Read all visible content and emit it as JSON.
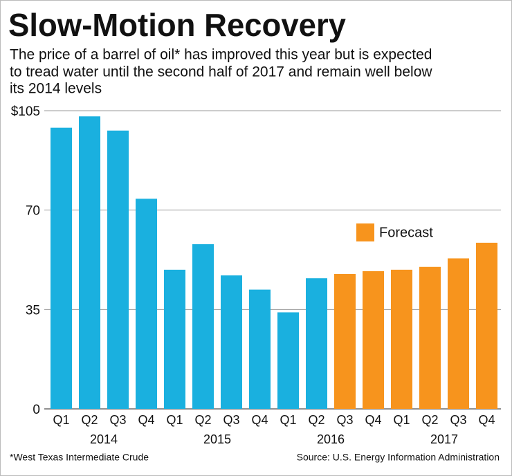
{
  "chart_data": {
    "type": "bar",
    "title": "Slow-Motion Recovery",
    "subtitle": [
      "The price of a barrel of oil* has improved this year but is expected",
      "to tread water until the second half of 2017 and remain well below",
      "its 2014 levels"
    ],
    "categories": [
      "Q1",
      "Q2",
      "Q3",
      "Q4",
      "Q1",
      "Q2",
      "Q3",
      "Q4",
      "Q1",
      "Q2",
      "Q3",
      "Q4",
      "Q1",
      "Q2",
      "Q3",
      "Q4"
    ],
    "years": [
      "2014",
      "2015",
      "2016",
      "2017"
    ],
    "series": [
      {
        "color": "#1ab0df",
        "values": [
          99,
          103,
          98,
          74,
          49,
          58,
          47,
          42,
          34,
          46,
          null,
          null,
          null,
          null,
          null,
          null
        ]
      },
      {
        "name": "Forecast",
        "color": "#f7941d",
        "values": [
          null,
          null,
          null,
          null,
          null,
          null,
          null,
          null,
          null,
          null,
          47.5,
          48.5,
          49,
          50,
          53,
          58.5
        ]
      }
    ],
    "ylim": [
      0,
      105
    ],
    "yticks": [
      0,
      35,
      70,
      {
        "value": 105,
        "label": "$105"
      }
    ],
    "grid": true,
    "note": "*West Texas Intermediate Crude",
    "source": "Source: U.S. Energy Information Administration"
  }
}
